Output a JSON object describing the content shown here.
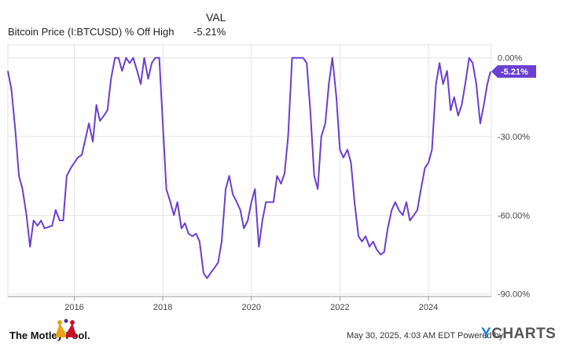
{
  "header": {
    "val_label": "VAL",
    "series_name": "Bitcoin Price (I:BTCUSD) % Off High",
    "series_value": "-5.21%"
  },
  "footer": {
    "brand": "The Motley Fool.",
    "timestamp": "May 30, 2025, 4:03 AM EDT",
    "powered_by": "Powered by",
    "ycharts_y": "Y",
    "ycharts_rest": "CHARTS"
  },
  "colors": {
    "line": "#6a3fd1",
    "grid": "#e4e4e4",
    "axis_text": "#444444",
    "badge_bg": "#6a3fd1",
    "badge_text": "#ffffff"
  },
  "chart_data": {
    "type": "line",
    "title": "",
    "xlabel": "",
    "ylabel": "",
    "x_ticks": [
      "2016",
      "2018",
      "2020",
      "2022",
      "2024"
    ],
    "y_ticks": [
      "0.00%",
      "-30.00%",
      "-60.00%",
      "-90.00%"
    ],
    "x_range": [
      2014.5,
      2025.42
    ],
    "y_range": [
      -91,
      5
    ],
    "last_value_label": "-5.21%",
    "series": [
      {
        "values": [
          [
            2014.5,
            -5
          ],
          [
            2014.58,
            -12
          ],
          [
            2014.67,
            -28
          ],
          [
            2014.75,
            -45
          ],
          [
            2014.83,
            -50
          ],
          [
            2014.92,
            -60
          ],
          [
            2015.0,
            -72
          ],
          [
            2015.08,
            -62
          ],
          [
            2015.17,
            -64
          ],
          [
            2015.25,
            -62
          ],
          [
            2015.33,
            -65
          ],
          [
            2015.5,
            -64
          ],
          [
            2015.58,
            -58
          ],
          [
            2015.67,
            -62
          ],
          [
            2015.75,
            -62
          ],
          [
            2015.83,
            -45
          ],
          [
            2015.92,
            -42
          ],
          [
            2016.0,
            -40
          ],
          [
            2016.08,
            -38
          ],
          [
            2016.17,
            -37
          ],
          [
            2016.33,
            -25
          ],
          [
            2016.42,
            -32
          ],
          [
            2016.5,
            -18
          ],
          [
            2016.58,
            -24
          ],
          [
            2016.67,
            -22
          ],
          [
            2016.75,
            -20
          ],
          [
            2016.83,
            -8
          ],
          [
            2016.92,
            0
          ],
          [
            2017.0,
            0
          ],
          [
            2017.08,
            -5
          ],
          [
            2017.17,
            0
          ],
          [
            2017.25,
            -2
          ],
          [
            2017.33,
            0
          ],
          [
            2017.42,
            -5
          ],
          [
            2017.5,
            -10
          ],
          [
            2017.58,
            0
          ],
          [
            2017.67,
            -8
          ],
          [
            2017.75,
            -2
          ],
          [
            2017.83,
            0
          ],
          [
            2017.92,
            0
          ],
          [
            2018.0,
            -25
          ],
          [
            2018.08,
            -50
          ],
          [
            2018.17,
            -55
          ],
          [
            2018.25,
            -60
          ],
          [
            2018.33,
            -55
          ],
          [
            2018.42,
            -65
          ],
          [
            2018.5,
            -63
          ],
          [
            2018.58,
            -67
          ],
          [
            2018.67,
            -68
          ],
          [
            2018.75,
            -67
          ],
          [
            2018.83,
            -70
          ],
          [
            2018.92,
            -82
          ],
          [
            2019.0,
            -84
          ],
          [
            2019.08,
            -82
          ],
          [
            2019.17,
            -80
          ],
          [
            2019.25,
            -78
          ],
          [
            2019.33,
            -70
          ],
          [
            2019.42,
            -50
          ],
          [
            2019.5,
            -45
          ],
          [
            2019.58,
            -52
          ],
          [
            2019.67,
            -55
          ],
          [
            2019.75,
            -58
          ],
          [
            2019.83,
            -65
          ],
          [
            2019.92,
            -62
          ],
          [
            2020.0,
            -55
          ],
          [
            2020.08,
            -50
          ],
          [
            2020.17,
            -72
          ],
          [
            2020.25,
            -62
          ],
          [
            2020.33,
            -55
          ],
          [
            2020.5,
            -55
          ],
          [
            2020.58,
            -45
          ],
          [
            2020.67,
            -48
          ],
          [
            2020.75,
            -44
          ],
          [
            2020.83,
            -30
          ],
          [
            2020.92,
            0
          ],
          [
            2021.0,
            0
          ],
          [
            2021.08,
            0
          ],
          [
            2021.17,
            0
          ],
          [
            2021.25,
            -2
          ],
          [
            2021.33,
            -20
          ],
          [
            2021.42,
            -45
          ],
          [
            2021.5,
            -50
          ],
          [
            2021.58,
            -30
          ],
          [
            2021.67,
            -25
          ],
          [
            2021.75,
            -10
          ],
          [
            2021.83,
            0
          ],
          [
            2021.92,
            -15
          ],
          [
            2022.0,
            -35
          ],
          [
            2022.08,
            -38
          ],
          [
            2022.17,
            -35
          ],
          [
            2022.25,
            -40
          ],
          [
            2022.33,
            -55
          ],
          [
            2022.42,
            -68
          ],
          [
            2022.5,
            -70
          ],
          [
            2022.58,
            -68
          ],
          [
            2022.67,
            -72
          ],
          [
            2022.75,
            -70
          ],
          [
            2022.83,
            -73
          ],
          [
            2022.92,
            -75
          ],
          [
            2023.0,
            -74
          ],
          [
            2023.08,
            -65
          ],
          [
            2023.17,
            -58
          ],
          [
            2023.25,
            -55
          ],
          [
            2023.33,
            -58
          ],
          [
            2023.42,
            -60
          ],
          [
            2023.5,
            -55
          ],
          [
            2023.58,
            -62
          ],
          [
            2023.67,
            -60
          ],
          [
            2023.75,
            -58
          ],
          [
            2023.83,
            -50
          ],
          [
            2023.92,
            -42
          ],
          [
            2024.0,
            -40
          ],
          [
            2024.08,
            -35
          ],
          [
            2024.17,
            -10
          ],
          [
            2024.25,
            -2
          ],
          [
            2024.33,
            -10
          ],
          [
            2024.42,
            -5
          ],
          [
            2024.5,
            -20
          ],
          [
            2024.58,
            -15
          ],
          [
            2024.67,
            -22
          ],
          [
            2024.75,
            -18
          ],
          [
            2024.83,
            -10
          ],
          [
            2024.92,
            0
          ],
          [
            2025.0,
            -2
          ],
          [
            2025.08,
            -10
          ],
          [
            2025.17,
            -25
          ],
          [
            2025.25,
            -18
          ],
          [
            2025.33,
            -10
          ],
          [
            2025.4,
            -5.21
          ]
        ]
      }
    ]
  }
}
